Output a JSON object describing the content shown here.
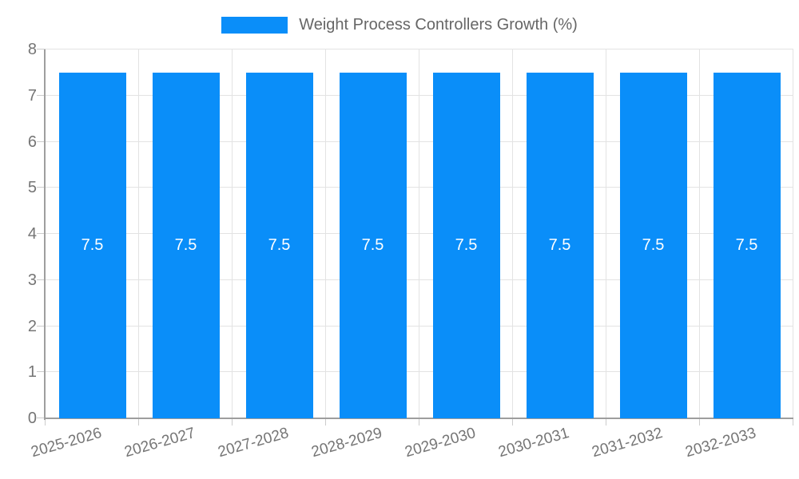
{
  "legend": {
    "label": "Weight Process Controllers Growth (%)",
    "swatch_icon": "legend-swatch-blue"
  },
  "chart_data": {
    "type": "bar",
    "title": "Weight Process Controllers Growth (%)",
    "categories": [
      "2025-2026",
      "2026-2027",
      "2027-2028",
      "2028-2029",
      "2029-2030",
      "2030-2031",
      "2031-2032",
      "2032-2033"
    ],
    "values": [
      7.5,
      7.5,
      7.5,
      7.5,
      7.5,
      7.5,
      7.5,
      7.5
    ],
    "value_labels": [
      "7.5",
      "7.5",
      "7.5",
      "7.5",
      "7.5",
      "7.5",
      "7.5",
      "7.5"
    ],
    "xlabel": "",
    "ylabel": "",
    "ylim": [
      0,
      8
    ],
    "yticks": [
      0,
      1,
      2,
      3,
      4,
      5,
      6,
      7,
      8
    ],
    "grid": true,
    "legend_position": "top",
    "colors": {
      "bar": "#0a8ef9",
      "bar_label": "#ffffff",
      "grid": "#e3e3e3",
      "axis": "#9e9e9e",
      "tick": "#cccccc",
      "tick_text": "#757575",
      "title_text": "#666666",
      "background": "#ffffff"
    }
  }
}
